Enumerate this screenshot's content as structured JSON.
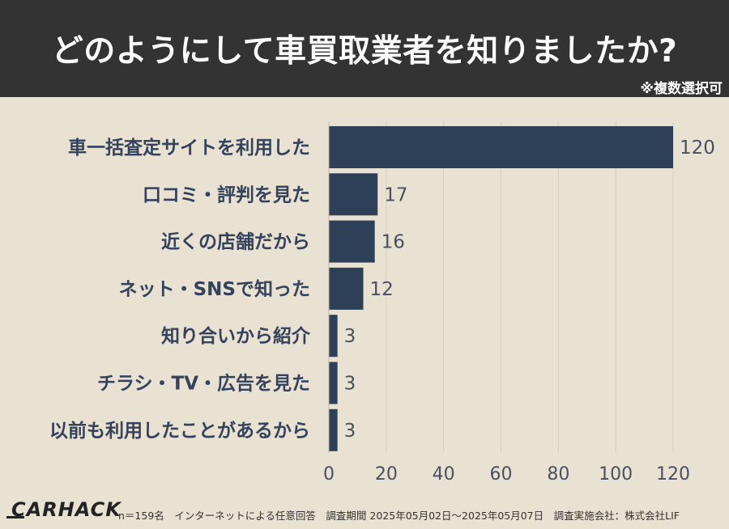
{
  "header": {
    "title": "どのようにして車買取業者を知りましたか?",
    "note": "※複数選択可"
  },
  "chart_data": {
    "type": "bar",
    "orientation": "horizontal",
    "categories": [
      "車一括査定サイトを利用した",
      "口コミ・評判を見た",
      "近くの店舗だから",
      "ネット・SNSで知った",
      "知り合いから紹介",
      "チラシ・TV・広告を見た",
      "以前も利用したことがあるから"
    ],
    "values": [
      120,
      17,
      16,
      12,
      3,
      3,
      3
    ],
    "xlim": [
      0,
      120
    ],
    "xticks": [
      "0",
      "20",
      "40",
      "60",
      "80",
      "100",
      "120"
    ],
    "grid": true,
    "bar_color": "#2e4057"
  },
  "footer": {
    "logo": "CARHACK",
    "text": "n＝159名　インターネットによる任意回答　調査期間 2025年05月02日〜2025年05月07日　調査実施会社：株式会社LIF"
  }
}
